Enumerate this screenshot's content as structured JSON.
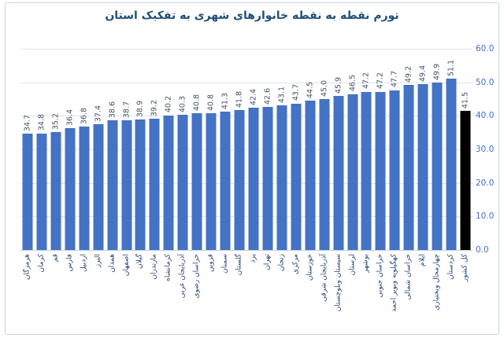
{
  "title": "تورم نقطه به نقطه خانوارهای شهری به تفکیک استان",
  "colors": {
    "title": "#1F4E79",
    "bar": "#4472C4",
    "highlight_bar": "#000000",
    "value_label": "#44546A",
    "category_label": "#264478",
    "ytick_label": "#4472C4",
    "gridline": "#DDE3ED",
    "axis_line": "#C3CCDA",
    "chart_border": "#C5D3E6"
  },
  "chart_data": {
    "type": "bar",
    "title": "تورم نقطه به نقطه خانوارهای شهری به تفکیک استان",
    "categories": [
      "هرمزگان",
      "کرمان",
      "قم",
      "فارس",
      "اردبیل",
      "البرز",
      "همدان",
      "اصفهان",
      "گیلان",
      "مازندران",
      "کرمانشاه",
      "آذربایجان غربی",
      "خراسان رضوی",
      "قزوین",
      "سمنان",
      "گلستان",
      "یزد",
      "تهران",
      "زنجان",
      "مرکزی",
      "خوزستان",
      "آذربایجان شرقی",
      "سیستان وبلوچستان",
      "لرستان",
      "بوشهر",
      "خراسان جنوبی",
      "کهگیلویه وبویر احمد",
      "خراسان شمالی",
      "ایلام",
      "چهارمحال وبختیاری",
      "کردستان",
      "کل کشور"
    ],
    "values": [
      34.7,
      34.8,
      35.2,
      36.4,
      36.8,
      37.4,
      38.6,
      38.7,
      38.9,
      39.2,
      40.2,
      40.3,
      40.8,
      40.8,
      41.3,
      41.8,
      42.4,
      42.6,
      43.1,
      43.7,
      44.5,
      45.0,
      45.9,
      46.5,
      47.2,
      47.2,
      47.7,
      49.2,
      49.4,
      49.9,
      51.1,
      41.5
    ],
    "highlight": {
      "index": 31,
      "category": "کل کشور",
      "color": "#000000"
    },
    "bar_color": "#4472C4",
    "xlabel": "",
    "ylabel": "",
    "ylim": [
      0,
      60
    ],
    "ytick_labels": [
      "60.0",
      "50.0",
      "40.0",
      "30.0",
      "20.0",
      "10.0",
      "0.0"
    ],
    "yaxis_side": "right",
    "grid": true,
    "legend": false,
    "value_labels_rotated": true,
    "category_labels_rotated": true
  }
}
